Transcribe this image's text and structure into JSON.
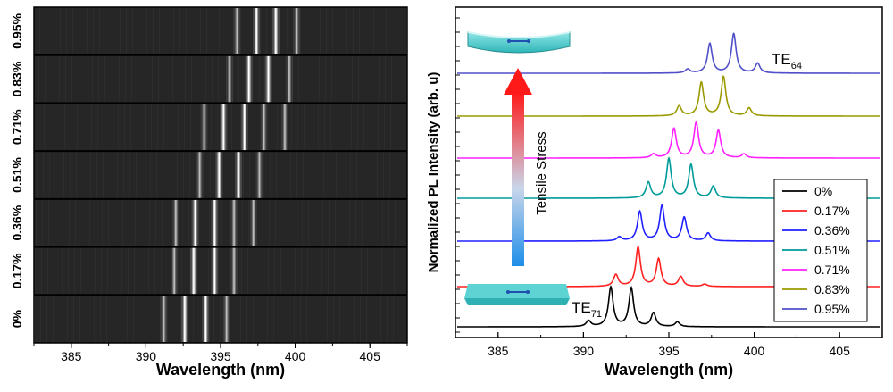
{
  "chart_data": [
    {
      "type": "heatmap",
      "panel": "left",
      "xlabel": "Wavelength (nm)",
      "x_ticks": [
        385,
        390,
        395,
        400,
        405
      ],
      "xlim": [
        382.5,
        407.5
      ],
      "rows": [
        {
          "label": "0%",
          "peaks": [
            391.2,
            392.6,
            394.0,
            395.4
          ]
        },
        {
          "label": "0.17%",
          "peaks": [
            391.9,
            393.2,
            394.6,
            395.9
          ]
        },
        {
          "label": "0.36%",
          "peaks": [
            392.0,
            393.3,
            394.6,
            395.9,
            397.2
          ]
        },
        {
          "label": "0.51%",
          "peaks": [
            393.6,
            394.9,
            396.2,
            397.6
          ]
        },
        {
          "label": "0.71%",
          "peaks": [
            393.9,
            395.2,
            396.6,
            397.9,
            399.3
          ]
        },
        {
          "label": "0.83%",
          "peaks": [
            395.6,
            396.9,
            398.2,
            399.6
          ]
        },
        {
          "label": "0.95%",
          "peaks": [
            396.1,
            397.4,
            398.7,
            400.1
          ]
        }
      ],
      "background_color": "#262626"
    },
    {
      "type": "line",
      "panel": "right",
      "xlabel": "Wavelength (nm)",
      "ylabel": "Normalized PL Intensity (arb. u)",
      "x_ticks": [
        385,
        390,
        395,
        400,
        405
      ],
      "xlim": [
        382.5,
        407.5
      ],
      "legend_position": "bottom-right",
      "series": [
        {
          "name": "0%",
          "color": "#000000",
          "peaks": [
            [
              390.3,
              0.15
            ],
            [
              391.6,
              1.0
            ],
            [
              392.8,
              0.98
            ],
            [
              394.1,
              0.35
            ],
            [
              395.5,
              0.12
            ]
          ]
        },
        {
          "name": "0.17%",
          "color": "#ff2020",
          "peaks": [
            [
              391.9,
              0.3
            ],
            [
              393.2,
              1.0
            ],
            [
              394.4,
              0.7
            ],
            [
              395.7,
              0.25
            ],
            [
              397.1,
              0.06
            ]
          ]
        },
        {
          "name": "0.36%",
          "color": "#2020ff",
          "peaks": [
            [
              392.1,
              0.1
            ],
            [
              393.3,
              0.75
            ],
            [
              394.6,
              0.9
            ],
            [
              395.9,
              0.6
            ],
            [
              397.3,
              0.2
            ]
          ]
        },
        {
          "name": "0.51%",
          "color": "#009a9a",
          "peaks": [
            [
              393.8,
              0.4
            ],
            [
              395.0,
              1.0
            ],
            [
              396.3,
              0.85
            ],
            [
              397.6,
              0.3
            ]
          ]
        },
        {
          "name": "0.71%",
          "color": "#ff20ff",
          "peaks": [
            [
              394.1,
              0.1
            ],
            [
              395.3,
              0.75
            ],
            [
              396.6,
              0.9
            ],
            [
              397.9,
              0.7
            ],
            [
              399.4,
              0.1
            ]
          ]
        },
        {
          "name": "0.83%",
          "color": "#9a9a00",
          "peaks": [
            [
              395.6,
              0.25
            ],
            [
              396.9,
              0.85
            ],
            [
              398.2,
              1.0
            ],
            [
              399.7,
              0.2
            ]
          ]
        },
        {
          "name": "0.95%",
          "color": "#5050c8",
          "peaks": [
            [
              396.1,
              0.1
            ],
            [
              397.4,
              0.75
            ],
            [
              398.8,
              1.0
            ],
            [
              400.2,
              0.25
            ]
          ]
        }
      ],
      "annotations": {
        "top_mode": {
          "main": "TE",
          "sub": "64"
        },
        "bottom_mode": {
          "main": "TE",
          "sub": "71"
        },
        "arrow_label": "Tensile Stress"
      }
    }
  ]
}
